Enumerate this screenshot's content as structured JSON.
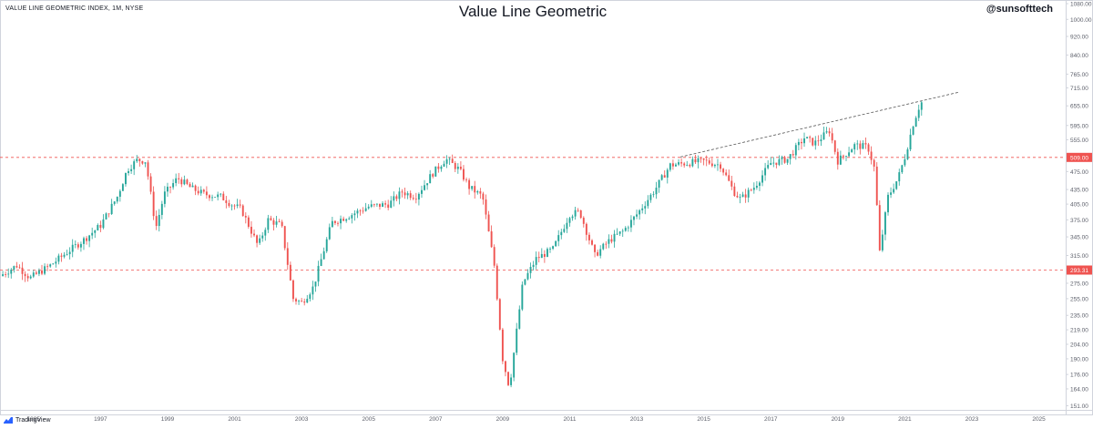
{
  "header": {
    "symbol_line": "VALUE LINE GEOMETRIC INDEX, 1M, NYSE",
    "title": "Value Line Geometric",
    "handle": "@sunsofttech"
  },
  "footer": {
    "brand": "TradingView",
    "brand_icon": "tradingview-logo-icon"
  },
  "colors": {
    "up": "#26a69a",
    "down": "#ef5350",
    "hline": "#ef5350",
    "trendline": "#555555",
    "axis_text": "#5d606b",
    "border": "#d1d4dc"
  },
  "chart_data": {
    "type": "candlestick",
    "y_scale": "log",
    "ylim": [
      148,
      1080
    ],
    "y_ticks": [
      151,
      164,
      176,
      190,
      204,
      219,
      235,
      255,
      275,
      315,
      345,
      375,
      405,
      435,
      475,
      555,
      595,
      655,
      715,
      765,
      840,
      920,
      1000,
      1080
    ],
    "xlim": [
      1994.0,
      2025.8
    ],
    "x_ticks": [
      "1995",
      "1997",
      "1999",
      "2001",
      "2003",
      "2005",
      "2007",
      "2009",
      "2011",
      "2013",
      "2015",
      "2017",
      "2019",
      "2021",
      "2023",
      "2025"
    ],
    "horizontal_levels": [
      {
        "value": 509.0,
        "label": "509.00"
      },
      {
        "value": 293.31,
        "label": "293.31"
      }
    ],
    "trendline": {
      "from": {
        "x": 2014.3,
        "y": 510
      },
      "to": {
        "x": 2022.6,
        "y": 700
      }
    },
    "close_path": [
      [
        1994.0,
        285
      ],
      [
        1994.5,
        300
      ],
      [
        1994.9,
        282
      ],
      [
        1995.5,
        300
      ],
      [
        1996.0,
        320
      ],
      [
        1996.5,
        340
      ],
      [
        1997.0,
        365
      ],
      [
        1997.5,
        420
      ],
      [
        1997.8,
        480
      ],
      [
        1998.1,
        503
      ],
      [
        1998.35,
        500
      ],
      [
        1998.65,
        360
      ],
      [
        1998.9,
        425
      ],
      [
        1999.3,
        460
      ],
      [
        1999.7,
        438
      ],
      [
        2000.1,
        425
      ],
      [
        2000.6,
        420
      ],
      [
        2000.9,
        405
      ],
      [
        2001.2,
        395
      ],
      [
        2001.7,
        330
      ],
      [
        2002.0,
        375
      ],
      [
        2002.4,
        365
      ],
      [
        2002.75,
        255
      ],
      [
        2003.0,
        250
      ],
      [
        2003.35,
        270
      ],
      [
        2003.9,
        370
      ],
      [
        2004.5,
        385
      ],
      [
        2005.0,
        400
      ],
      [
        2005.6,
        405
      ],
      [
        2006.0,
        430
      ],
      [
        2006.4,
        420
      ],
      [
        2006.9,
        470
      ],
      [
        2007.3,
        505
      ],
      [
        2007.7,
        480
      ],
      [
        2008.0,
        440
      ],
      [
        2008.4,
        420
      ],
      [
        2008.75,
        300
      ],
      [
        2009.0,
        190
      ],
      [
        2009.2,
        165
      ],
      [
        2009.6,
        275
      ],
      [
        2010.0,
        310
      ],
      [
        2010.5,
        325
      ],
      [
        2011.0,
        385
      ],
      [
        2011.3,
        390
      ],
      [
        2011.75,
        315
      ],
      [
        2012.2,
        340
      ],
      [
        2012.6,
        355
      ],
      [
        2013.0,
        385
      ],
      [
        2013.5,
        430
      ],
      [
        2014.0,
        490
      ],
      [
        2014.5,
        495
      ],
      [
        2015.0,
        500
      ],
      [
        2015.5,
        490
      ],
      [
        2015.9,
        430
      ],
      [
        2016.1,
        415
      ],
      [
        2016.5,
        440
      ],
      [
        2017.0,
        495
      ],
      [
        2017.5,
        505
      ],
      [
        2018.0,
        560
      ],
      [
        2018.3,
        545
      ],
      [
        2018.75,
        580
      ],
      [
        2019.0,
        500
      ],
      [
        2019.5,
        540
      ],
      [
        2019.9,
        535
      ],
      [
        2020.1,
        480
      ],
      [
        2020.25,
        320
      ],
      [
        2020.5,
        420
      ],
      [
        2020.8,
        460
      ],
      [
        2021.0,
        510
      ],
      [
        2021.25,
        600
      ],
      [
        2021.45,
        660
      ],
      [
        2021.55,
        672
      ]
    ]
  }
}
